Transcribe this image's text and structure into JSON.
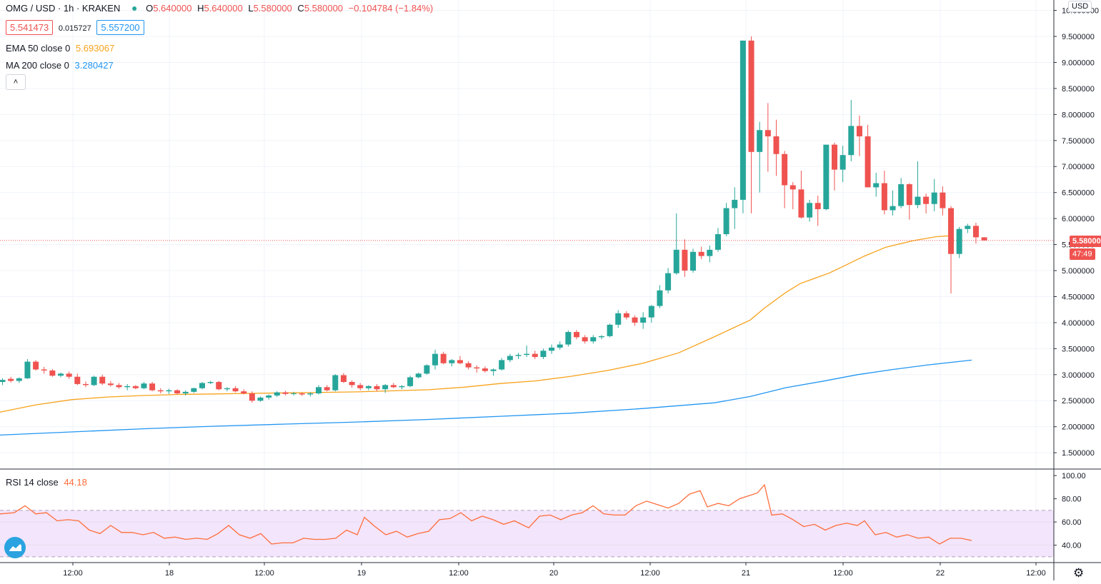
{
  "header": {
    "symbol": "OMG / USD · 1h · KRAKEN",
    "ohlc": {
      "o_label": "O",
      "o": "5.640000",
      "h_label": "H",
      "h": "5.640000",
      "l_label": "L",
      "l": "5.580000",
      "c_label": "C",
      "c": "5.580000",
      "change": "−0.104784 (−1.84%)"
    },
    "bid": "5.541473",
    "spread": "0.015727",
    "ask": "5.557200",
    "collapse_icon": "chevron-up-icon"
  },
  "indicators": {
    "ema": {
      "label": "EMA 50 close 0",
      "value": "5.693067",
      "color": "#f7a21b"
    },
    "ma": {
      "label": "MA 200 close 0",
      "value": "3.280427",
      "color": "#2196f3"
    },
    "rsi": {
      "label": "RSI 14 close",
      "value": "44.18",
      "color": "#ff6d3b"
    }
  },
  "price_axis": {
    "currency": "USD",
    "ticks": [
      "10.000000",
      "9.500000",
      "9.000000",
      "8.500000",
      "8.000000",
      "7.500000",
      "7.000000",
      "6.500000",
      "6.000000",
      "5.500000",
      "5.000000",
      "4.500000",
      "4.000000",
      "3.500000",
      "3.000000",
      "2.500000",
      "2.000000",
      "1.500000"
    ],
    "last_price": "5.580000",
    "countdown": "47:49"
  },
  "rsi_axis": {
    "ticks": [
      "100.00",
      "80.00",
      "60.00",
      "40.00"
    ]
  },
  "time_axis": {
    "ticks": [
      "12:00",
      "18",
      "12:00",
      "19",
      "12:00",
      "20",
      "12:00",
      "21",
      "12:00",
      "22",
      "12:00"
    ]
  },
  "icons": {
    "settings": "gear-icon",
    "logo": "tradingview-logo-icon"
  },
  "colors": {
    "up": "#26a69a",
    "down": "#ef5350",
    "grid": "#f0f3fa",
    "rsi_band": "#f3e5fb"
  },
  "chart_data": [
    {
      "type": "candlestick",
      "title": "OMG / USD · 1h · KRAKEN",
      "ylim": [
        1.2,
        10.2
      ],
      "x_ticks": [
        "12:00",
        "18",
        "12:00",
        "19",
        "12:00",
        "20",
        "12:00",
        "21",
        "12:00",
        "22",
        "12:00"
      ],
      "candles": [
        [
          2.86,
          2.93,
          2.8,
          2.9
        ],
        [
          2.92,
          2.96,
          2.85,
          2.88
        ],
        [
          2.88,
          2.95,
          2.84,
          2.93
        ],
        [
          2.93,
          3.3,
          2.92,
          3.25
        ],
        [
          3.25,
          3.28,
          3.08,
          3.1
        ],
        [
          3.1,
          3.15,
          3.02,
          3.08
        ],
        [
          3.08,
          3.11,
          2.96,
          2.98
        ],
        [
          2.98,
          3.04,
          2.95,
          3.02
        ],
        [
          3.02,
          3.06,
          2.92,
          2.96
        ],
        [
          2.96,
          3.02,
          2.8,
          2.82
        ],
        [
          2.82,
          2.87,
          2.76,
          2.8
        ],
        [
          2.8,
          2.98,
          2.78,
          2.96
        ],
        [
          2.96,
          3.0,
          2.8,
          2.83
        ],
        [
          2.83,
          2.88,
          2.77,
          2.8
        ],
        [
          2.8,
          2.84,
          2.73,
          2.76
        ],
        [
          2.76,
          2.82,
          2.7,
          2.78
        ],
        [
          2.78,
          2.8,
          2.72,
          2.74
        ],
        [
          2.74,
          2.86,
          2.72,
          2.83
        ],
        [
          2.83,
          2.86,
          2.68,
          2.7
        ],
        [
          2.7,
          2.74,
          2.64,
          2.68
        ],
        [
          2.68,
          2.73,
          2.63,
          2.7
        ],
        [
          2.7,
          2.72,
          2.62,
          2.64
        ],
        [
          2.64,
          2.7,
          2.6,
          2.67
        ],
        [
          2.67,
          2.75,
          2.65,
          2.74
        ],
        [
          2.74,
          2.86,
          2.72,
          2.84
        ],
        [
          2.84,
          2.88,
          2.82,
          2.86
        ],
        [
          2.86,
          2.88,
          2.7,
          2.72
        ],
        [
          2.72,
          2.76,
          2.68,
          2.74
        ],
        [
          2.74,
          2.78,
          2.66,
          2.68
        ],
        [
          2.68,
          2.72,
          2.62,
          2.64
        ],
        [
          2.64,
          2.68,
          2.46,
          2.5
        ],
        [
          2.5,
          2.58,
          2.48,
          2.56
        ],
        [
          2.56,
          2.62,
          2.52,
          2.6
        ],
        [
          2.6,
          2.68,
          2.57,
          2.66
        ],
        [
          2.66,
          2.69,
          2.6,
          2.63
        ],
        [
          2.63,
          2.67,
          2.6,
          2.64
        ],
        [
          2.64,
          2.66,
          2.59,
          2.62
        ],
        [
          2.62,
          2.66,
          2.58,
          2.64
        ],
        [
          2.64,
          2.8,
          2.62,
          2.76
        ],
        [
          2.76,
          2.8,
          2.68,
          2.7
        ],
        [
          2.7,
          3.01,
          2.68,
          2.99
        ],
        [
          2.99,
          3.03,
          2.84,
          2.86
        ],
        [
          2.86,
          2.89,
          2.75,
          2.8
        ],
        [
          2.8,
          2.84,
          2.7,
          2.74
        ],
        [
          2.74,
          2.8,
          2.7,
          2.78
        ],
        [
          2.78,
          2.82,
          2.68,
          2.72
        ],
        [
          2.72,
          2.82,
          2.65,
          2.8
        ],
        [
          2.8,
          2.84,
          2.74,
          2.76
        ],
        [
          2.76,
          2.8,
          2.72,
          2.78
        ],
        [
          2.78,
          2.98,
          2.76,
          2.95
        ],
        [
          2.95,
          3.04,
          2.93,
          3.02
        ],
        [
          3.02,
          3.2,
          3.0,
          3.18
        ],
        [
          3.18,
          3.48,
          3.1,
          3.4
        ],
        [
          3.4,
          3.44,
          3.2,
          3.22
        ],
        [
          3.22,
          3.3,
          3.16,
          3.28
        ],
        [
          3.28,
          3.36,
          3.2,
          3.22
        ],
        [
          3.22,
          3.26,
          3.1,
          3.14
        ],
        [
          3.14,
          3.18,
          3.04,
          3.12
        ],
        [
          3.12,
          3.16,
          3.04,
          3.07
        ],
        [
          3.07,
          3.12,
          2.98,
          3.1
        ],
        [
          3.1,
          3.32,
          3.08,
          3.28
        ],
        [
          3.28,
          3.4,
          3.24,
          3.36
        ],
        [
          3.36,
          3.42,
          3.3,
          3.38
        ],
        [
          3.38,
          3.56,
          3.34,
          3.4
        ],
        [
          3.4,
          3.46,
          3.3,
          3.34
        ],
        [
          3.34,
          3.5,
          3.3,
          3.46
        ],
        [
          3.46,
          3.58,
          3.4,
          3.52
        ],
        [
          3.52,
          3.64,
          3.48,
          3.58
        ],
        [
          3.58,
          3.85,
          3.54,
          3.82
        ],
        [
          3.82,
          3.86,
          3.68,
          3.72
        ],
        [
          3.72,
          3.76,
          3.6,
          3.64
        ],
        [
          3.64,
          3.76,
          3.6,
          3.72
        ],
        [
          3.72,
          3.76,
          3.68,
          3.74
        ],
        [
          3.74,
          3.98,
          3.72,
          3.96
        ],
        [
          3.96,
          4.24,
          3.9,
          4.18
        ],
        [
          4.18,
          4.22,
          4.06,
          4.1
        ],
        [
          4.1,
          4.14,
          3.94,
          4.0
        ],
        [
          4.0,
          4.2,
          3.88,
          4.1
        ],
        [
          4.1,
          4.34,
          4.0,
          4.32
        ],
        [
          4.32,
          4.72,
          4.28,
          4.62
        ],
        [
          4.62,
          5.05,
          4.56,
          4.95
        ],
        [
          4.95,
          6.1,
          4.92,
          5.4
        ],
        [
          5.4,
          5.6,
          4.88,
          5.0
        ],
        [
          5.0,
          5.42,
          4.96,
          5.36
        ],
        [
          5.36,
          5.46,
          5.22,
          5.28
        ],
        [
          5.28,
          5.48,
          5.16,
          5.4
        ],
        [
          5.4,
          5.82,
          5.36,
          5.7
        ],
        [
          5.7,
          6.3,
          5.66,
          6.2
        ],
        [
          6.2,
          6.6,
          5.8,
          6.36
        ],
        [
          6.36,
          9.42,
          6.1,
          9.42
        ],
        [
          9.42,
          9.5,
          6.1,
          7.28
        ],
        [
          7.28,
          7.86,
          6.5,
          7.7
        ],
        [
          7.7,
          8.22,
          6.9,
          7.58
        ],
        [
          7.58,
          7.9,
          6.82,
          7.24
        ],
        [
          7.24,
          7.3,
          6.2,
          6.64
        ],
        [
          6.64,
          6.7,
          6.18,
          6.56
        ],
        [
          6.56,
          6.92,
          6.0,
          6.02
        ],
        [
          6.02,
          6.36,
          5.94,
          6.3
        ],
        [
          6.3,
          6.44,
          5.86,
          6.18
        ],
        [
          6.18,
          7.38,
          6.16,
          7.42
        ],
        [
          7.42,
          7.46,
          6.54,
          6.94
        ],
        [
          6.94,
          7.4,
          6.7,
          7.22
        ],
        [
          7.22,
          8.28,
          7.1,
          7.78
        ],
        [
          7.78,
          7.98,
          7.2,
          7.58
        ],
        [
          7.58,
          7.8,
          6.6,
          6.6
        ],
        [
          6.6,
          6.88,
          6.42,
          6.68
        ],
        [
          6.68,
          6.92,
          6.08,
          6.16
        ],
        [
          6.16,
          6.54,
          6.06,
          6.24
        ],
        [
          6.24,
          6.78,
          6.2,
          6.66
        ],
        [
          6.66,
          6.68,
          5.98,
          6.26
        ],
        [
          6.26,
          7.1,
          6.2,
          6.42
        ],
        [
          6.42,
          6.48,
          6.1,
          6.28
        ],
        [
          6.28,
          6.76,
          6.14,
          6.5
        ],
        [
          6.5,
          6.62,
          6.06,
          6.2
        ],
        [
          6.2,
          6.24,
          4.56,
          5.32
        ],
        [
          5.32,
          5.84,
          5.24,
          5.8
        ],
        [
          5.8,
          5.9,
          5.72,
          5.86
        ],
        [
          5.86,
          5.92,
          5.52,
          5.64
        ],
        [
          5.64,
          5.64,
          5.58,
          5.58
        ]
      ],
      "ema50": [
        [
          0,
          2.28
        ],
        [
          50,
          2.42
        ],
        [
          100,
          2.52
        ],
        [
          150,
          2.57
        ],
        [
          200,
          2.6
        ],
        [
          250,
          2.62
        ],
        [
          300,
          2.63
        ],
        [
          350,
          2.64
        ],
        [
          400,
          2.65
        ],
        [
          450,
          2.66
        ],
        [
          500,
          2.67
        ],
        [
          550,
          2.69
        ],
        [
          600,
          2.71
        ],
        [
          650,
          2.76
        ],
        [
          700,
          2.83
        ],
        [
          750,
          2.88
        ],
        [
          800,
          2.97
        ],
        [
          850,
          3.08
        ],
        [
          900,
          3.22
        ],
        [
          950,
          3.42
        ],
        [
          1000,
          3.73
        ],
        [
          1050,
          4.05
        ],
        [
          1070,
          4.28
        ],
        [
          1100,
          4.58
        ],
        [
          1120,
          4.75
        ],
        [
          1160,
          4.95
        ],
        [
          1180,
          5.08
        ],
        [
          1210,
          5.28
        ],
        [
          1240,
          5.45
        ],
        [
          1280,
          5.58
        ],
        [
          1310,
          5.65
        ],
        [
          1330,
          5.67
        ]
      ],
      "ma200": [
        [
          0,
          1.84
        ],
        [
          100,
          1.9
        ],
        [
          200,
          1.96
        ],
        [
          300,
          2.01
        ],
        [
          400,
          2.05
        ],
        [
          500,
          2.09
        ],
        [
          600,
          2.14
        ],
        [
          700,
          2.2
        ],
        [
          800,
          2.26
        ],
        [
          900,
          2.35
        ],
        [
          1000,
          2.46
        ],
        [
          1050,
          2.58
        ],
        [
          1100,
          2.75
        ],
        [
          1150,
          2.87
        ],
        [
          1200,
          3.0
        ],
        [
          1250,
          3.1
        ],
        [
          1300,
          3.19
        ],
        [
          1360,
          3.28
        ]
      ]
    },
    {
      "type": "line",
      "title": "RSI 14 close",
      "ylim": [
        25,
        105
      ],
      "bands": [
        30,
        70
      ],
      "values": [
        [
          0,
          67
        ],
        [
          20,
          68
        ],
        [
          35,
          74
        ],
        [
          50,
          67
        ],
        [
          65,
          68
        ],
        [
          80,
          61
        ],
        [
          95,
          62
        ],
        [
          110,
          61
        ],
        [
          125,
          53
        ],
        [
          140,
          50
        ],
        [
          155,
          57
        ],
        [
          170,
          51
        ],
        [
          185,
          51
        ],
        [
          200,
          49
        ],
        [
          215,
          51
        ],
        [
          230,
          46
        ],
        [
          245,
          47
        ],
        [
          260,
          45
        ],
        [
          275,
          46
        ],
        [
          290,
          45
        ],
        [
          305,
          50
        ],
        [
          320,
          57
        ],
        [
          335,
          49
        ],
        [
          350,
          46
        ],
        [
          365,
          50
        ],
        [
          380,
          41
        ],
        [
          395,
          42
        ],
        [
          410,
          42
        ],
        [
          425,
          46
        ],
        [
          440,
          45
        ],
        [
          455,
          45
        ],
        [
          470,
          46
        ],
        [
          485,
          53
        ],
        [
          500,
          49
        ],
        [
          510,
          64
        ],
        [
          525,
          56
        ],
        [
          540,
          49
        ],
        [
          555,
          52
        ],
        [
          570,
          47
        ],
        [
          585,
          50
        ],
        [
          600,
          52
        ],
        [
          615,
          62
        ],
        [
          630,
          63
        ],
        [
          645,
          68
        ],
        [
          660,
          61
        ],
        [
          675,
          65
        ],
        [
          690,
          62
        ],
        [
          705,
          58
        ],
        [
          720,
          61
        ],
        [
          740,
          55
        ],
        [
          755,
          65
        ],
        [
          770,
          66
        ],
        [
          785,
          62
        ],
        [
          800,
          66
        ],
        [
          815,
          68
        ],
        [
          830,
          74
        ],
        [
          845,
          67
        ],
        [
          860,
          66
        ],
        [
          875,
          66
        ],
        [
          890,
          74
        ],
        [
          905,
          78
        ],
        [
          920,
          75
        ],
        [
          935,
          72
        ],
        [
          950,
          76
        ],
        [
          965,
          84
        ],
        [
          980,
          87
        ],
        [
          990,
          73
        ],
        [
          1005,
          76
        ],
        [
          1020,
          74
        ],
        [
          1035,
          80
        ],
        [
          1050,
          83
        ],
        [
          1060,
          85
        ],
        [
          1070,
          92
        ],
        [
          1080,
          66
        ],
        [
          1095,
          67
        ],
        [
          1110,
          62
        ],
        [
          1125,
          56
        ],
        [
          1140,
          58
        ],
        [
          1155,
          53
        ],
        [
          1170,
          57
        ],
        [
          1185,
          59
        ],
        [
          1200,
          57
        ],
        [
          1210,
          61
        ],
        [
          1225,
          49
        ],
        [
          1240,
          51
        ],
        [
          1255,
          47
        ],
        [
          1270,
          49
        ],
        [
          1285,
          46
        ],
        [
          1300,
          47
        ],
        [
          1315,
          41
        ],
        [
          1330,
          46
        ],
        [
          1345,
          46
        ],
        [
          1360,
          44
        ]
      ]
    }
  ]
}
